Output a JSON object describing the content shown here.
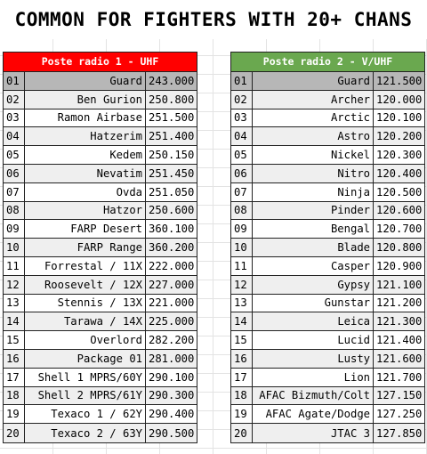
{
  "title": "COMMON FOR FIGHTERS WITH 20+ CHANS",
  "colors": {
    "left_header": "#ff0000",
    "right_header": "#6aa84f",
    "first_row": "#b7b7b7",
    "alt_row": "#efefef"
  },
  "left": {
    "header": "Poste radio 1 - UHF",
    "rows": [
      {
        "num": "01",
        "name": "Guard",
        "freq": "243.000"
      },
      {
        "num": "02",
        "name": "Ben Gurion",
        "freq": "250.800"
      },
      {
        "num": "03",
        "name": "Ramon Airbase",
        "freq": "251.500"
      },
      {
        "num": "04",
        "name": "Hatzerim",
        "freq": "251.400"
      },
      {
        "num": "05",
        "name": "Kedem",
        "freq": "250.150"
      },
      {
        "num": "06",
        "name": "Nevatim",
        "freq": "251.450"
      },
      {
        "num": "07",
        "name": "Ovda",
        "freq": "251.050"
      },
      {
        "num": "08",
        "name": "Hatzor",
        "freq": "250.600"
      },
      {
        "num": "09",
        "name": "FARP Desert",
        "freq": "360.100"
      },
      {
        "num": "10",
        "name": "FARP Range",
        "freq": "360.200"
      },
      {
        "num": "11",
        "name": "Forrestal / 11X",
        "freq": "222.000"
      },
      {
        "num": "12",
        "name": "Roosevelt / 12X",
        "freq": "227.000"
      },
      {
        "num": "13",
        "name": "Stennis / 13X",
        "freq": "221.000"
      },
      {
        "num": "14",
        "name": "Tarawa / 14X",
        "freq": "225.000"
      },
      {
        "num": "15",
        "name": "Overlord",
        "freq": "282.200"
      },
      {
        "num": "16",
        "name": "Package 01",
        "freq": "281.000"
      },
      {
        "num": "17",
        "name": "Shell 1 MPRS/60Y",
        "freq": "290.100"
      },
      {
        "num": "18",
        "name": "Shell 2 MPRS/61Y",
        "freq": "290.300"
      },
      {
        "num": "19",
        "name": "Texaco 1 / 62Y",
        "freq": "290.400"
      },
      {
        "num": "20",
        "name": "Texaco 2 / 63Y",
        "freq": "290.500"
      }
    ]
  },
  "right": {
    "header": "Poste radio 2 - V/UHF",
    "rows": [
      {
        "num": "01",
        "name": "Guard",
        "freq": "121.500"
      },
      {
        "num": "02",
        "name": "Archer",
        "freq": "120.000"
      },
      {
        "num": "03",
        "name": "Arctic",
        "freq": "120.100"
      },
      {
        "num": "04",
        "name": "Astro",
        "freq": "120.200"
      },
      {
        "num": "05",
        "name": "Nickel",
        "freq": "120.300"
      },
      {
        "num": "06",
        "name": "Nitro",
        "freq": "120.400"
      },
      {
        "num": "07",
        "name": "Ninja",
        "freq": "120.500"
      },
      {
        "num": "08",
        "name": "Pinder",
        "freq": "120.600"
      },
      {
        "num": "09",
        "name": "Bengal",
        "freq": "120.700"
      },
      {
        "num": "10",
        "name": "Blade",
        "freq": "120.800"
      },
      {
        "num": "11",
        "name": "Casper",
        "freq": "120.900"
      },
      {
        "num": "12",
        "name": "Gypsy",
        "freq": "121.100"
      },
      {
        "num": "13",
        "name": "Gunstar",
        "freq": "121.200"
      },
      {
        "num": "14",
        "name": "Leica",
        "freq": "121.300"
      },
      {
        "num": "15",
        "name": "Lucid",
        "freq": "121.400"
      },
      {
        "num": "16",
        "name": "Lusty",
        "freq": "121.600"
      },
      {
        "num": "17",
        "name": "Lion",
        "freq": "121.700"
      },
      {
        "num": "18",
        "name": "AFAC Bizmuth/Colt",
        "freq": "127.150"
      },
      {
        "num": "19",
        "name": "AFAC Agate/Dodge",
        "freq": "127.250"
      },
      {
        "num": "20",
        "name": "JTAC 3",
        "freq": "127.850"
      }
    ]
  }
}
